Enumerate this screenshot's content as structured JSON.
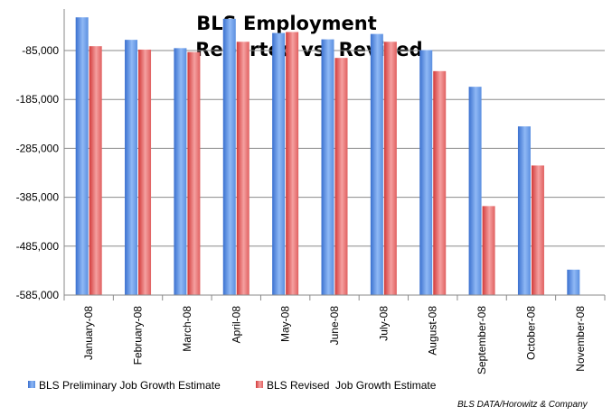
{
  "chart_data": {
    "type": "bar",
    "title_line1": "BLS Employment",
    "title_line2": "Reported vs. Revised",
    "xlabel": "",
    "ylabel": "",
    "categories": [
      "January-08",
      "February-08",
      "March-08",
      "April-08",
      "May-08",
      "June-08",
      "July-08",
      "August-08",
      "September-08",
      "October-08",
      "November-08"
    ],
    "y_ticks": [
      "-585,000",
      "-485,000",
      "-385,000",
      "-285,000",
      "-185,000",
      "-85,000"
    ],
    "ylim": [
      -585000,
      0
    ],
    "y_axis_inverted": true,
    "grid": true,
    "legend_position": "bottom",
    "series": [
      {
        "name": "BLS Preliminary Job Growth Estimate",
        "color": "#4f86db",
        "values": [
          -17000,
          -63000,
          -80000,
          -20000,
          -49000,
          -62000,
          -51000,
          -84000,
          -159000,
          -240000,
          -533000
        ]
      },
      {
        "name": "BLS Revised  Job Growth Estimate",
        "color": "#dd4343",
        "values": [
          -76000,
          -83000,
          -88000,
          -67000,
          -47000,
          -100000,
          -67000,
          -127000,
          -403000,
          -320000,
          null
        ]
      }
    ],
    "source_note": "BLS DATA/Horowitz & Company"
  }
}
